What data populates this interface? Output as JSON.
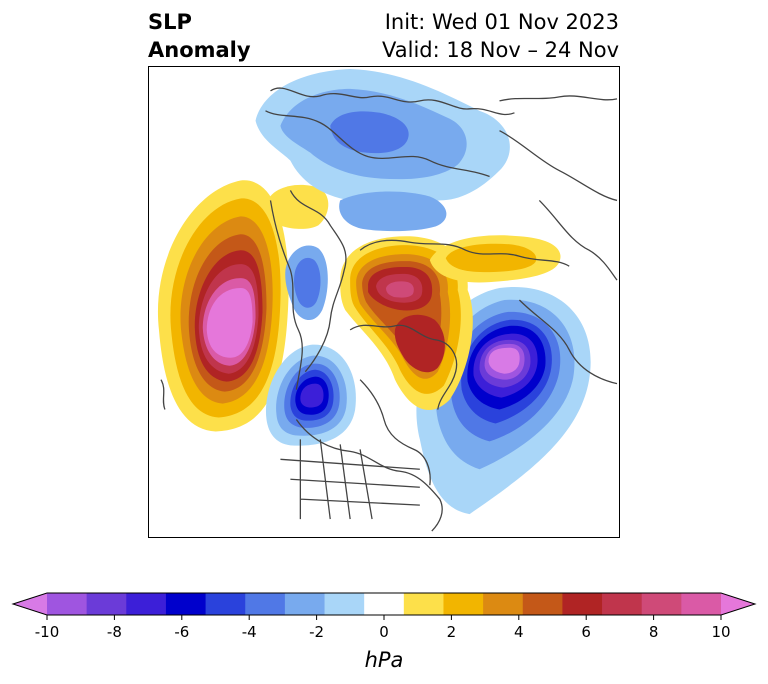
{
  "title": {
    "left": [
      "SLP",
      "Anomaly"
    ],
    "right": [
      "Init: Wed 01 Nov 2023",
      "Valid: 18 Nov – 24 Nov"
    ]
  },
  "colorbar": {
    "unit_label": "hPa",
    "ticks": [
      "-10",
      "-8",
      "-6",
      "-4",
      "-2",
      "0",
      "2",
      "4",
      "6",
      "8",
      "10"
    ],
    "colors": [
      "#d87ae6",
      "#9f55e0",
      "#6b3bd8",
      "#3c1fd8",
      "#0000cc",
      "#2a42dc",
      "#5078e6",
      "#78aaee",
      "#a9d6f8",
      "#ffffff",
      "#fde04a",
      "#f2b500",
      "#dc8a12",
      "#c45818",
      "#b02424",
      "#c0354c",
      "#cf4a78",
      "#da5aa6",
      "#e577da"
    ],
    "extend": "both"
  }
}
